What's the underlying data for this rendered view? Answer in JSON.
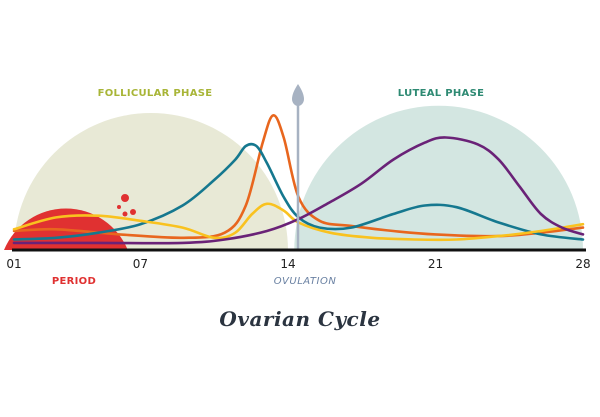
{
  "chart_data": {
    "type": "line",
    "title": "Ovarian Cycle",
    "xlabel": "",
    "ylabel": "",
    "xlim": [
      1,
      28
    ],
    "ylim": [
      0,
      1
    ],
    "x_ticks": [
      {
        "value": 1,
        "label": "01"
      },
      {
        "value": 7,
        "label": "07"
      },
      {
        "value": 14,
        "label": "14"
      },
      {
        "value": 21,
        "label": "21"
      },
      {
        "value": 28,
        "label": "28"
      }
    ],
    "phases": [
      {
        "name": "FOLLICULAR PHASE",
        "start": 1,
        "end": 14,
        "color": "#e8e9d6",
        "label_color": "#a8b537"
      },
      {
        "name": "LUTEAL PHASE",
        "start": 14.3,
        "end": 28,
        "color": "#d3e6e1",
        "label_color": "#2e8a73"
      }
    ],
    "annotations": {
      "period": {
        "label": "PERIOD",
        "start": 1,
        "end": 6.4,
        "color": "#e03131"
      },
      "ovulation": {
        "label": "OVULATION",
        "x": 14,
        "color": "#6b82a3",
        "line_color": "#a7b2c2"
      }
    },
    "series": [
      {
        "color": "#e8661e",
        "x": [
          1,
          3,
          6,
          9,
          11,
          12,
          12.8,
          13.3,
          13.8,
          14.5,
          15.5,
          17,
          19,
          21,
          24,
          26,
          28
        ],
        "y": [
          0.1,
          0.11,
          0.08,
          0.06,
          0.09,
          0.25,
          0.62,
          0.78,
          0.65,
          0.3,
          0.16,
          0.13,
          0.1,
          0.08,
          0.07,
          0.09,
          0.12
        ]
      },
      {
        "color": "#15788f",
        "x": [
          1,
          3,
          5,
          7,
          9,
          10.5,
          11.5,
          12,
          12.5,
          13,
          13.8,
          14.5,
          15.5,
          17,
          19,
          20.5,
          22,
          24,
          26,
          28
        ],
        "y": [
          0.05,
          0.06,
          0.09,
          0.14,
          0.25,
          0.4,
          0.52,
          0.6,
          0.6,
          0.5,
          0.3,
          0.18,
          0.12,
          0.12,
          0.2,
          0.25,
          0.24,
          0.15,
          0.08,
          0.05
        ]
      },
      {
        "color": "#f9c21f",
        "x": [
          1,
          3,
          5,
          7,
          9,
          10.5,
          11.5,
          12.3,
          13,
          13.8,
          14.5,
          16,
          18,
          20,
          22,
          24,
          26,
          28
        ],
        "y": [
          0.11,
          0.18,
          0.19,
          0.16,
          0.12,
          0.06,
          0.09,
          0.2,
          0.26,
          0.22,
          0.15,
          0.09,
          0.06,
          0.05,
          0.05,
          0.07,
          0.1,
          0.14
        ]
      },
      {
        "color": "#6a2277",
        "x": [
          1,
          5,
          9,
          11,
          13,
          14.5,
          16,
          17.5,
          19,
          20.5,
          21.5,
          23,
          24,
          25,
          26,
          27,
          28
        ],
        "y": [
          0.03,
          0.03,
          0.03,
          0.05,
          0.1,
          0.17,
          0.27,
          0.38,
          0.52,
          0.62,
          0.65,
          0.61,
          0.52,
          0.36,
          0.2,
          0.12,
          0.08
        ]
      }
    ],
    "grid": false,
    "legend": "none"
  }
}
